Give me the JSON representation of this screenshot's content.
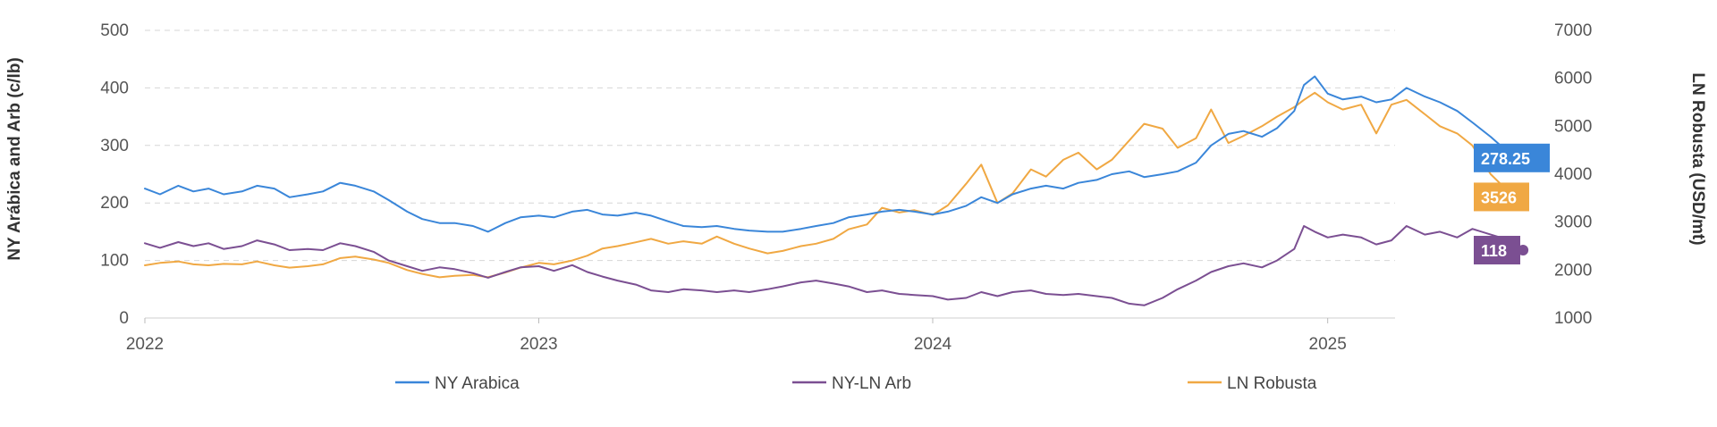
{
  "chart_data": {
    "type": "line",
    "title": "",
    "xlabel": "",
    "ylabel_left": "NY Arábica and Arb (c/lb)",
    "ylabel_right": "LN Robusta (USD/mt)",
    "x_ticks": [
      "2022",
      "2023",
      "2024",
      "2025"
    ],
    "x_range": [
      "2022-01-01",
      "2025-07-15"
    ],
    "y_left_range": [
      0,
      500
    ],
    "y_left_ticks": [
      "0",
      "100",
      "200",
      "300",
      "400",
      "500"
    ],
    "y_right_range": [
      1000,
      7000
    ],
    "y_right_ticks": [
      "1000",
      "2000",
      "3000",
      "4000",
      "5000",
      "6000",
      "7000"
    ],
    "grid": "horizontal dashed",
    "legend_position": "bottom",
    "series": [
      {
        "name": "NY Arabica",
        "axis": "left",
        "color": "#3a86d9",
        "end_label": "278.25",
        "points": [
          [
            "2022-01-01",
            225
          ],
          [
            "2022-01-15",
            215
          ],
          [
            "2022-02-01",
            230
          ],
          [
            "2022-02-15",
            220
          ],
          [
            "2022-03-01",
            225
          ],
          [
            "2022-03-15",
            215
          ],
          [
            "2022-04-01",
            220
          ],
          [
            "2022-04-15",
            230
          ],
          [
            "2022-05-01",
            225
          ],
          [
            "2022-05-15",
            210
          ],
          [
            "2022-06-01",
            215
          ],
          [
            "2022-06-15",
            220
          ],
          [
            "2022-07-01",
            235
          ],
          [
            "2022-07-15",
            230
          ],
          [
            "2022-08-01",
            220
          ],
          [
            "2022-08-15",
            205
          ],
          [
            "2022-09-01",
            185
          ],
          [
            "2022-09-15",
            172
          ],
          [
            "2022-10-01",
            165
          ],
          [
            "2022-10-15",
            165
          ],
          [
            "2022-11-01",
            160
          ],
          [
            "2022-11-15",
            150
          ],
          [
            "2022-12-01",
            165
          ],
          [
            "2022-12-15",
            175
          ],
          [
            "2023-01-01",
            178
          ],
          [
            "2023-01-15",
            175
          ],
          [
            "2023-02-01",
            185
          ],
          [
            "2023-02-15",
            188
          ],
          [
            "2023-03-01",
            180
          ],
          [
            "2023-03-15",
            178
          ],
          [
            "2023-04-01",
            183
          ],
          [
            "2023-04-15",
            178
          ],
          [
            "2023-05-01",
            168
          ],
          [
            "2023-05-15",
            160
          ],
          [
            "2023-06-01",
            158
          ],
          [
            "2023-06-15",
            160
          ],
          [
            "2023-07-01",
            155
          ],
          [
            "2023-07-15",
            152
          ],
          [
            "2023-08-01",
            150
          ],
          [
            "2023-08-15",
            150
          ],
          [
            "2023-09-01",
            155
          ],
          [
            "2023-09-15",
            160
          ],
          [
            "2023-10-01",
            165
          ],
          [
            "2023-10-15",
            175
          ],
          [
            "2023-11-01",
            180
          ],
          [
            "2023-11-15",
            185
          ],
          [
            "2023-12-01",
            188
          ],
          [
            "2023-12-15",
            185
          ],
          [
            "2024-01-01",
            180
          ],
          [
            "2024-01-15",
            185
          ],
          [
            "2024-02-01",
            195
          ],
          [
            "2024-02-15",
            210
          ],
          [
            "2024-03-01",
            200
          ],
          [
            "2024-03-15",
            215
          ],
          [
            "2024-04-01",
            225
          ],
          [
            "2024-04-15",
            230
          ],
          [
            "2024-05-01",
            225
          ],
          [
            "2024-05-15",
            235
          ],
          [
            "2024-06-01",
            240
          ],
          [
            "2024-06-15",
            250
          ],
          [
            "2024-07-01",
            255
          ],
          [
            "2024-07-15",
            245
          ],
          [
            "2024-08-01",
            250
          ],
          [
            "2024-08-15",
            255
          ],
          [
            "2024-09-01",
            270
          ],
          [
            "2024-09-15",
            300
          ],
          [
            "2024-10-01",
            320
          ],
          [
            "2024-10-15",
            325
          ],
          [
            "2024-11-01",
            315
          ],
          [
            "2024-11-15",
            330
          ],
          [
            "2024-12-01",
            360
          ],
          [
            "2024-12-10",
            405
          ],
          [
            "2024-12-20",
            420
          ],
          [
            "2025-01-01",
            390
          ],
          [
            "2025-01-15",
            380
          ],
          [
            "2025-02-01",
            385
          ],
          [
            "2025-02-15",
            375
          ],
          [
            "2025-03-01",
            380
          ],
          [
            "2025-03-15",
            400
          ],
          [
            "2025-04-01",
            385
          ],
          [
            "2025-04-15",
            375
          ],
          [
            "2025-05-01",
            360
          ],
          [
            "2025-05-15",
            340
          ],
          [
            "2025-06-01",
            315
          ],
          [
            "2025-06-10",
            300
          ],
          [
            "2025-06-20",
            285
          ],
          [
            "2025-07-01",
            278.25
          ]
        ]
      },
      {
        "name": "NY-LN Arb",
        "axis": "left",
        "color": "#7b4f92",
        "end_label": "118",
        "points": [
          [
            "2022-01-01",
            130
          ],
          [
            "2022-01-15",
            122
          ],
          [
            "2022-02-01",
            132
          ],
          [
            "2022-02-15",
            125
          ],
          [
            "2022-03-01",
            130
          ],
          [
            "2022-03-15",
            120
          ],
          [
            "2022-04-01",
            125
          ],
          [
            "2022-04-15",
            135
          ],
          [
            "2022-05-01",
            128
          ],
          [
            "2022-05-15",
            118
          ],
          [
            "2022-06-01",
            120
          ],
          [
            "2022-06-15",
            118
          ],
          [
            "2022-07-01",
            130
          ],
          [
            "2022-07-15",
            125
          ],
          [
            "2022-08-01",
            115
          ],
          [
            "2022-08-15",
            100
          ],
          [
            "2022-09-01",
            90
          ],
          [
            "2022-09-15",
            82
          ],
          [
            "2022-10-01",
            88
          ],
          [
            "2022-10-15",
            85
          ],
          [
            "2022-11-01",
            78
          ],
          [
            "2022-11-15",
            70
          ],
          [
            "2022-12-01",
            80
          ],
          [
            "2022-12-15",
            88
          ],
          [
            "2023-01-01",
            90
          ],
          [
            "2023-01-15",
            82
          ],
          [
            "2023-02-01",
            92
          ],
          [
            "2023-02-15",
            80
          ],
          [
            "2023-03-01",
            72
          ],
          [
            "2023-03-15",
            65
          ],
          [
            "2023-04-01",
            58
          ],
          [
            "2023-04-15",
            48
          ],
          [
            "2023-05-01",
            45
          ],
          [
            "2023-05-15",
            50
          ],
          [
            "2023-06-01",
            48
          ],
          [
            "2023-06-15",
            45
          ],
          [
            "2023-07-01",
            48
          ],
          [
            "2023-07-15",
            45
          ],
          [
            "2023-08-01",
            50
          ],
          [
            "2023-08-15",
            55
          ],
          [
            "2023-09-01",
            62
          ],
          [
            "2023-09-15",
            65
          ],
          [
            "2023-10-01",
            60
          ],
          [
            "2023-10-15",
            55
          ],
          [
            "2023-11-01",
            45
          ],
          [
            "2023-11-15",
            48
          ],
          [
            "2023-12-01",
            42
          ],
          [
            "2023-12-15",
            40
          ],
          [
            "2024-01-01",
            38
          ],
          [
            "2024-01-15",
            32
          ],
          [
            "2024-02-01",
            35
          ],
          [
            "2024-02-15",
            45
          ],
          [
            "2024-03-01",
            38
          ],
          [
            "2024-03-15",
            45
          ],
          [
            "2024-04-01",
            48
          ],
          [
            "2024-04-15",
            42
          ],
          [
            "2024-05-01",
            40
          ],
          [
            "2024-05-15",
            42
          ],
          [
            "2024-06-01",
            38
          ],
          [
            "2024-06-15",
            35
          ],
          [
            "2024-07-01",
            25
          ],
          [
            "2024-07-15",
            22
          ],
          [
            "2024-08-01",
            35
          ],
          [
            "2024-08-15",
            50
          ],
          [
            "2024-09-01",
            65
          ],
          [
            "2024-09-15",
            80
          ],
          [
            "2024-10-01",
            90
          ],
          [
            "2024-10-15",
            95
          ],
          [
            "2024-11-01",
            88
          ],
          [
            "2024-11-15",
            100
          ],
          [
            "2024-12-01",
            120
          ],
          [
            "2024-12-10",
            160
          ],
          [
            "2024-12-20",
            150
          ],
          [
            "2025-01-01",
            140
          ],
          [
            "2025-01-15",
            145
          ],
          [
            "2025-02-01",
            140
          ],
          [
            "2025-02-15",
            128
          ],
          [
            "2025-03-01",
            135
          ],
          [
            "2025-03-15",
            160
          ],
          [
            "2025-04-01",
            145
          ],
          [
            "2025-04-15",
            150
          ],
          [
            "2025-05-01",
            140
          ],
          [
            "2025-05-15",
            155
          ],
          [
            "2025-06-01",
            145
          ],
          [
            "2025-06-10",
            140
          ],
          [
            "2025-06-20",
            128
          ],
          [
            "2025-07-01",
            118
          ]
        ]
      },
      {
        "name": "LN Robusta",
        "axis": "right",
        "color": "#f0a843",
        "end_label": "3526",
        "points": [
          [
            "2022-01-01",
            2100
          ],
          [
            "2022-01-15",
            2150
          ],
          [
            "2022-02-01",
            2180
          ],
          [
            "2022-02-15",
            2120
          ],
          [
            "2022-03-01",
            2100
          ],
          [
            "2022-03-15",
            2130
          ],
          [
            "2022-04-01",
            2120
          ],
          [
            "2022-04-15",
            2180
          ],
          [
            "2022-05-01",
            2100
          ],
          [
            "2022-05-15",
            2050
          ],
          [
            "2022-06-01",
            2080
          ],
          [
            "2022-06-15",
            2120
          ],
          [
            "2022-07-01",
            2250
          ],
          [
            "2022-07-15",
            2280
          ],
          [
            "2022-08-01",
            2220
          ],
          [
            "2022-08-15",
            2150
          ],
          [
            "2022-09-01",
            2000
          ],
          [
            "2022-09-15",
            1920
          ],
          [
            "2022-10-01",
            1850
          ],
          [
            "2022-10-15",
            1880
          ],
          [
            "2022-11-01",
            1900
          ],
          [
            "2022-11-15",
            1850
          ],
          [
            "2022-12-01",
            1950
          ],
          [
            "2022-12-15",
            2050
          ],
          [
            "2023-01-01",
            2150
          ],
          [
            "2023-01-15",
            2120
          ],
          [
            "2023-02-01",
            2200
          ],
          [
            "2023-02-15",
            2300
          ],
          [
            "2023-03-01",
            2450
          ],
          [
            "2023-03-15",
            2500
          ],
          [
            "2023-04-01",
            2580
          ],
          [
            "2023-04-15",
            2650
          ],
          [
            "2023-05-01",
            2550
          ],
          [
            "2023-05-15",
            2600
          ],
          [
            "2023-06-01",
            2550
          ],
          [
            "2023-06-15",
            2700
          ],
          [
            "2023-07-01",
            2550
          ],
          [
            "2023-07-15",
            2450
          ],
          [
            "2023-08-01",
            2350
          ],
          [
            "2023-08-15",
            2400
          ],
          [
            "2023-09-01",
            2500
          ],
          [
            "2023-09-15",
            2550
          ],
          [
            "2023-10-01",
            2650
          ],
          [
            "2023-10-15",
            2850
          ],
          [
            "2023-11-01",
            2950
          ],
          [
            "2023-11-15",
            3300
          ],
          [
            "2023-12-01",
            3200
          ],
          [
            "2023-12-15",
            3250
          ],
          [
            "2024-01-01",
            3150
          ],
          [
            "2024-01-15",
            3350
          ],
          [
            "2024-02-01",
            3800
          ],
          [
            "2024-02-15",
            4200
          ],
          [
            "2024-03-01",
            3400
          ],
          [
            "2024-03-15",
            3600
          ],
          [
            "2024-04-01",
            4100
          ],
          [
            "2024-04-15",
            3950
          ],
          [
            "2024-05-01",
            4300
          ],
          [
            "2024-05-15",
            4450
          ],
          [
            "2024-06-01",
            4100
          ],
          [
            "2024-06-15",
            4300
          ],
          [
            "2024-07-01",
            4700
          ],
          [
            "2024-07-15",
            5050
          ],
          [
            "2024-08-01",
            4950
          ],
          [
            "2024-08-15",
            4550
          ],
          [
            "2024-09-01",
            4750
          ],
          [
            "2024-09-15",
            5350
          ],
          [
            "2024-10-01",
            4650
          ],
          [
            "2024-10-15",
            4800
          ],
          [
            "2024-11-01",
            5000
          ],
          [
            "2024-11-15",
            5200
          ],
          [
            "2024-12-01",
            5400
          ],
          [
            "2024-12-10",
            5550
          ],
          [
            "2024-12-20",
            5700
          ],
          [
            "2025-01-01",
            5500
          ],
          [
            "2025-01-15",
            5350
          ],
          [
            "2025-02-01",
            5450
          ],
          [
            "2025-02-15",
            4850
          ],
          [
            "2025-03-01",
            5450
          ],
          [
            "2025-03-15",
            5550
          ],
          [
            "2025-04-01",
            5250
          ],
          [
            "2025-04-15",
            5000
          ],
          [
            "2025-05-01",
            4850
          ],
          [
            "2025-05-15",
            4600
          ],
          [
            "2025-06-01",
            4000
          ],
          [
            "2025-06-10",
            3800
          ],
          [
            "2025-06-20",
            3550
          ],
          [
            "2025-07-01",
            3526
          ]
        ]
      }
    ]
  }
}
